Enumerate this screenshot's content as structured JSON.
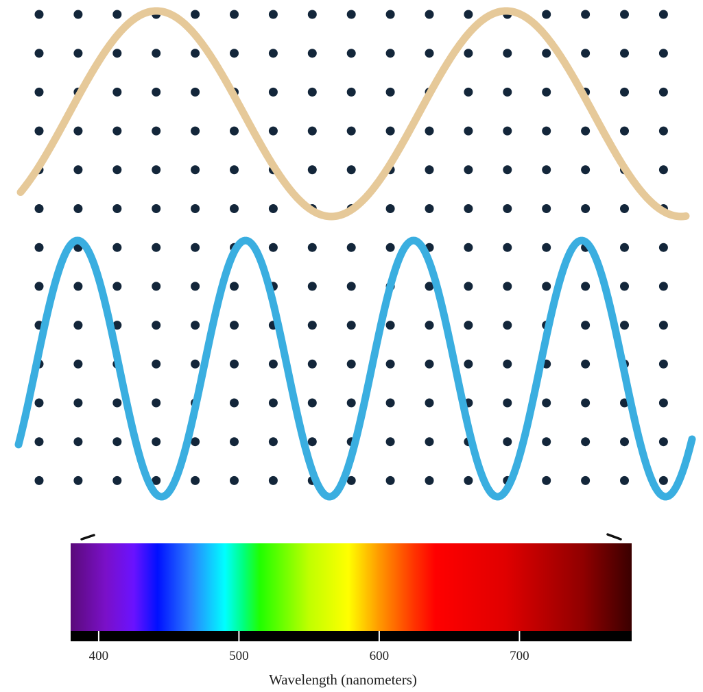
{
  "spectrum": {
    "tick_labels": [
      "400",
      "500",
      "600",
      "700"
    ],
    "tick_values": [
      400,
      500,
      600,
      700
    ],
    "axis_title": "Wavelength (nanometers)",
    "range_nm": [
      380,
      780
    ],
    "gradient_stops": [
      {
        "nm": 380,
        "color": "#5a0a7a"
      },
      {
        "nm": 405,
        "color": "#7a10c8"
      },
      {
        "nm": 425,
        "color": "#6a12ff"
      },
      {
        "nm": 442,
        "color": "#0010ff"
      },
      {
        "nm": 465,
        "color": "#2a7cff"
      },
      {
        "nm": 490,
        "color": "#00ffff"
      },
      {
        "nm": 503,
        "color": "#00ff80"
      },
      {
        "nm": 515,
        "color": "#20ff00"
      },
      {
        "nm": 550,
        "color": "#c0ff00"
      },
      {
        "nm": 578,
        "color": "#ffff00"
      },
      {
        "nm": 600,
        "color": "#ff9900"
      },
      {
        "nm": 625,
        "color": "#ff3300"
      },
      {
        "nm": 640,
        "color": "#ff0000"
      },
      {
        "nm": 690,
        "color": "#e00000"
      },
      {
        "nm": 745,
        "color": "#900000"
      },
      {
        "nm": 780,
        "color": "#3a0000"
      }
    ]
  },
  "waves": {
    "long_wave_color": "#e6c999",
    "short_wave_color": "#3aaee0"
  },
  "dot_grid": {
    "color": "#13263a",
    "columns": 17,
    "rows": 13
  }
}
